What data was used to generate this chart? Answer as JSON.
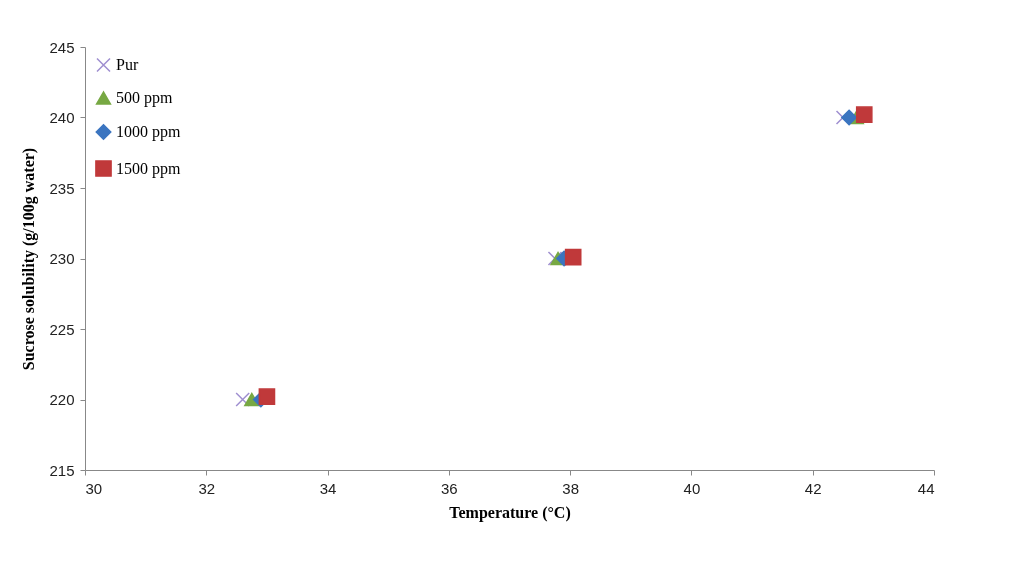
{
  "chart_data": {
    "type": "scatter",
    "xlabel": "Temperature  (°C)",
    "ylabel": "Sucrose solubility (g/100g water)",
    "xlim": [
      30,
      44
    ],
    "xticks": [
      30,
      32,
      34,
      36,
      38,
      40,
      42,
      44
    ],
    "ylim": [
      215,
      245
    ],
    "yticks": [
      215,
      220,
      225,
      230,
      235,
      240,
      245
    ],
    "grid": false,
    "legend": "top left",
    "series": [
      {
        "name": "Pur",
        "color": "#9f8fd0",
        "marker": "cross",
        "x": [
          32.6,
          37.75,
          42.5
        ],
        "values": [
          220,
          230,
          240
        ]
      },
      {
        "name": "500 ppm",
        "color": "#77a843",
        "marker": "triangle",
        "x": [
          32.75,
          37.8,
          42.72
        ],
        "values": [
          220,
          230,
          240
        ]
      },
      {
        "name": "1000 ppm",
        "color": "#3b75c0",
        "marker": "diamond",
        "x": [
          32.9,
          37.9,
          42.6
        ],
        "values": [
          220,
          230,
          240
        ]
      },
      {
        "name": "1500 ppm",
        "color": "#c0393a",
        "marker": "square",
        "x": [
          33.0,
          38.05,
          42.85
        ],
        "values": [
          220.2,
          230.1,
          240.2
        ]
      }
    ]
  }
}
